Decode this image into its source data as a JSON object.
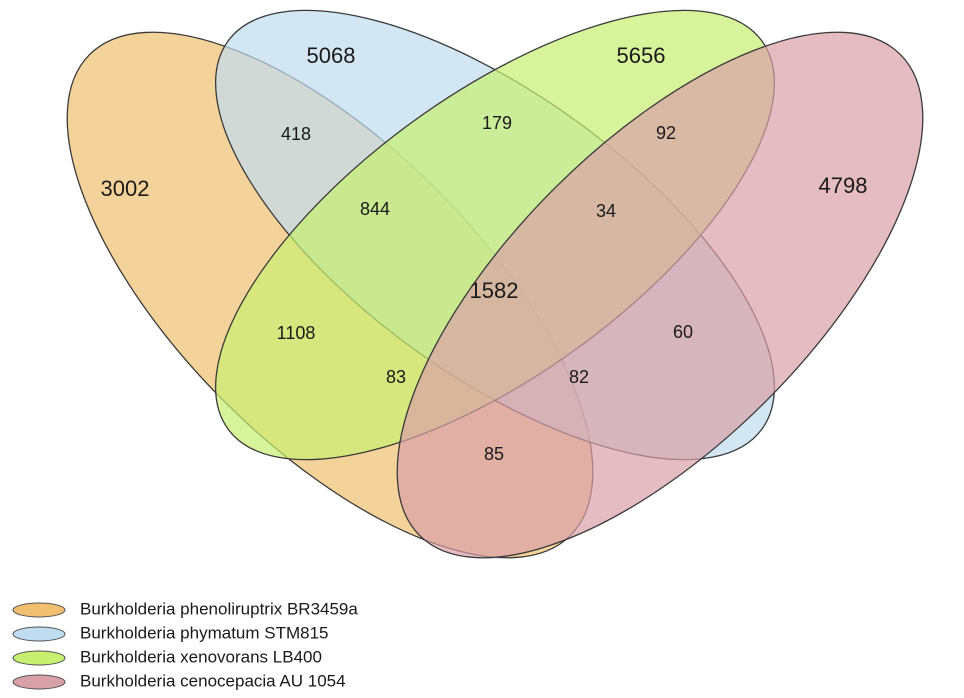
{
  "sets": [
    {
      "name": "Burkholderia phenoliruptrix BR3459a",
      "color": "#f0c070"
    },
    {
      "name": "Burkholderia phymatum STM815",
      "color": "#c0dcf0"
    },
    {
      "name": "Burkholderia xenovorans LB400",
      "color": "#c8f070"
    },
    {
      "name": "Burkholderia cenocepacia AU 1054",
      "color": "#d8a0a8"
    }
  ],
  "regions": {
    "A_only": "3002",
    "B_only": "5068",
    "C_only": "5656",
    "D_only": "4798",
    "AB": "418",
    "BC": "179",
    "CD": "92",
    "ABC": "844",
    "BCD": "34",
    "ABCD": "1582",
    "AC": "1108",
    "BD": "60",
    "ACD": "83",
    "ABD": "82",
    "AD": "85"
  }
}
